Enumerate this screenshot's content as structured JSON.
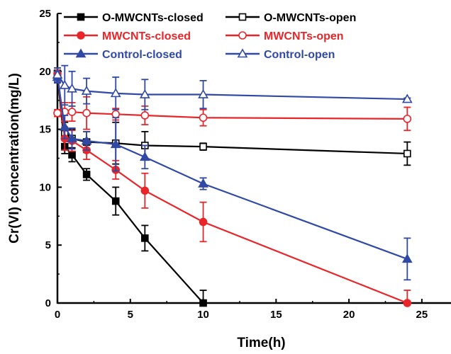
{
  "chart_data": {
    "type": "line",
    "xlabel": "Time(h)",
    "ylabel": "Cr(VI) concentration(mg/L)",
    "xlim": [
      0,
      27
    ],
    "ylim": [
      0,
      25
    ],
    "xticks": [
      0,
      5,
      10,
      15,
      20,
      25
    ],
    "yticks": [
      0,
      5,
      10,
      15,
      20,
      25
    ],
    "grid": false,
    "legend_position": "top",
    "series": [
      {
        "name": "O-MWCNTs-closed",
        "color": "#000000",
        "marker": "square-filled",
        "x": [
          0,
          0.5,
          1,
          2,
          4,
          6,
          10
        ],
        "y": [
          19.6,
          13.5,
          12.8,
          11.1,
          8.8,
          5.6,
          0
        ],
        "err": [
          0.5,
          0.6,
          0.6,
          0.5,
          1.2,
          1.1,
          1.1
        ]
      },
      {
        "name": "O-MWCNTs-open",
        "color": "#000000",
        "marker": "square-open",
        "x": [
          0,
          0.5,
          1,
          2,
          4,
          6,
          10,
          24
        ],
        "y": [
          19.8,
          14.6,
          14.2,
          13.9,
          13.8,
          13.6,
          13.5,
          12.9
        ],
        "err": [
          0.5,
          1.0,
          0.8,
          0.9,
          1.8,
          1.2,
          0.3,
          1.0
        ]
      },
      {
        "name": "MWCNTs-closed",
        "color": "#e8262a",
        "marker": "circle-filled",
        "x": [
          0,
          0.5,
          1,
          2,
          4,
          6,
          10,
          24
        ],
        "y": [
          19.8,
          14.2,
          14.0,
          13.2,
          11.5,
          9.7,
          7.0,
          0
        ],
        "err": [
          0.5,
          1.0,
          0.9,
          0.8,
          0.8,
          1.5,
          1.7,
          1.1
        ]
      },
      {
        "name": "MWCNTs-open",
        "color": "#e8262a",
        "marker": "circle-open",
        "x": [
          0,
          0.5,
          1,
          2,
          4,
          6,
          10,
          24
        ],
        "y": [
          16.4,
          16.5,
          16.5,
          16.4,
          16.3,
          16.2,
          16.0,
          15.9
        ],
        "err": [
          0.3,
          0.8,
          0.8,
          1.4,
          0.5,
          0.8,
          0.7,
          1.0
        ]
      },
      {
        "name": "Control-closed",
        "color": "#3049a4",
        "marker": "triangle-filled",
        "x": [
          0,
          0.5,
          1,
          2,
          4,
          6,
          10,
          24
        ],
        "y": [
          19.5,
          15.2,
          14.2,
          14.0,
          13.7,
          12.6,
          10.3,
          3.8
        ],
        "err": [
          0.5,
          1.0,
          0.9,
          0.8,
          2.3,
          1.0,
          0.5,
          1.8
        ]
      },
      {
        "name": "Control-open",
        "color": "#3049a4",
        "marker": "triangle-open",
        "x": [
          0,
          0.5,
          1,
          2,
          4,
          6,
          10,
          24
        ],
        "y": [
          19.7,
          18.8,
          18.5,
          18.3,
          18.1,
          18.0,
          18.0,
          17.6
        ],
        "err": [
          0.6,
          1.7,
          1.5,
          1.1,
          1.4,
          1.3,
          1.2,
          0.1
        ]
      }
    ]
  }
}
